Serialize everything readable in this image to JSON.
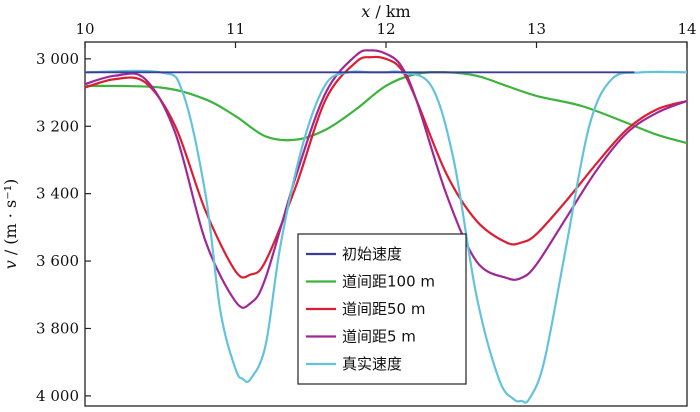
{
  "chart_data": {
    "type": "line",
    "xlabel_var": "x",
    "xlabel_unit": " / km",
    "ylabel_var": "v",
    "ylabel_unit": " / (m · s⁻¹)",
    "x_axis_position": "top",
    "y_inverted": true,
    "xlim": [
      10,
      14
    ],
    "ylim": [
      2950,
      4030
    ],
    "x_ticks": [
      10,
      11,
      12,
      13,
      14
    ],
    "x_tick_labels": [
      "10",
      "11",
      "12",
      "13",
      "14"
    ],
    "y_ticks": [
      3000,
      3200,
      3400,
      3600,
      3800,
      4000
    ],
    "y_tick_labels": [
      "3 000",
      "3 200",
      "3 400",
      "3 600",
      "3 800",
      "4 000"
    ],
    "grid": false,
    "legend_position": "bottom-center-left",
    "series": [
      {
        "name": "初始速度",
        "color": "#3b3b98",
        "x": [
          10.0,
          11.0,
          12.0,
          13.0,
          13.65
        ],
        "y": [
          3040,
          3040,
          3040,
          3040,
          3040
        ]
      },
      {
        "name": "道间距100 m",
        "color": "#3cb43c",
        "x": [
          10.0,
          10.5,
          10.8,
          11.0,
          11.2,
          11.4,
          11.6,
          11.8,
          12.0,
          12.2,
          12.4,
          12.6,
          12.8,
          13.0,
          13.3,
          13.6,
          13.8,
          14.0
        ],
        "y": [
          3080,
          3085,
          3120,
          3170,
          3230,
          3240,
          3210,
          3150,
          3080,
          3045,
          3040,
          3050,
          3080,
          3110,
          3140,
          3190,
          3225,
          3250
        ]
      },
      {
        "name": "道间距50 m",
        "color": "#dc1e32",
        "x": [
          10.0,
          10.2,
          10.4,
          10.6,
          10.8,
          11.0,
          11.1,
          11.2,
          11.4,
          11.6,
          11.8,
          11.9,
          12.0,
          12.1,
          12.2,
          12.4,
          12.6,
          12.8,
          12.9,
          13.0,
          13.2,
          13.4,
          13.6,
          13.8,
          14.0
        ],
        "y": [
          3085,
          3060,
          3070,
          3200,
          3450,
          3630,
          3640,
          3600,
          3380,
          3120,
          3010,
          2995,
          3000,
          3030,
          3120,
          3340,
          3480,
          3545,
          3545,
          3520,
          3420,
          3310,
          3210,
          3150,
          3125
        ]
      },
      {
        "name": "道间距5 m",
        "color": "#a02896",
        "x": [
          10.0,
          10.2,
          10.4,
          10.6,
          10.8,
          11.0,
          11.1,
          11.2,
          11.4,
          11.6,
          11.8,
          11.9,
          12.0,
          12.1,
          12.2,
          12.4,
          12.6,
          12.8,
          12.9,
          13.0,
          13.2,
          13.4,
          13.6,
          13.8,
          14.0
        ],
        "y": [
          3075,
          3050,
          3060,
          3220,
          3540,
          3720,
          3725,
          3650,
          3350,
          3100,
          2990,
          2975,
          2985,
          3020,
          3120,
          3400,
          3600,
          3650,
          3650,
          3610,
          3470,
          3330,
          3220,
          3160,
          3125
        ]
      },
      {
        "name": "真实速度",
        "color": "#64c3dc",
        "x": [
          10.0,
          10.5,
          10.65,
          10.8,
          10.9,
          11.0,
          11.05,
          11.1,
          11.2,
          11.3,
          11.45,
          11.6,
          11.75,
          11.9,
          12.0,
          12.1,
          12.3,
          12.45,
          12.6,
          12.75,
          12.85,
          12.9,
          12.95,
          13.05,
          13.2,
          13.35,
          13.5,
          13.7,
          14.0
        ],
        "y": [
          3040,
          3040,
          3100,
          3400,
          3750,
          3920,
          3950,
          3950,
          3850,
          3550,
          3250,
          3075,
          3040,
          3040,
          3040,
          3040,
          3080,
          3300,
          3700,
          3950,
          4010,
          4015,
          4010,
          3900,
          3550,
          3200,
          3060,
          3040,
          3040
        ]
      }
    ]
  }
}
